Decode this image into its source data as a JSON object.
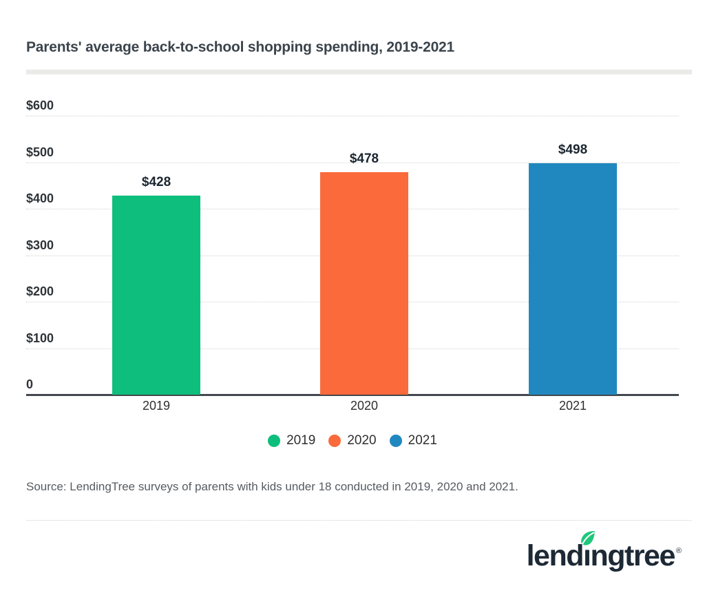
{
  "header": {
    "title": "Parents' average back-to-school shopping spending, 2019-2021"
  },
  "chart_data": {
    "type": "bar",
    "title": "Parents' average back-to-school shopping spending, 2019-2021",
    "categories": [
      "2019",
      "2020",
      "2021"
    ],
    "values": [
      428,
      478,
      498
    ],
    "value_labels": [
      "$428",
      "$478",
      "$498"
    ],
    "bar_colors": [
      "#0DBE7C",
      "#FB6A3B",
      "#2188BF"
    ],
    "ylim": [
      0,
      600
    ],
    "yticks": [
      0,
      100,
      200,
      300,
      400,
      500,
      600
    ],
    "ytick_labels": [
      "0",
      "$100",
      "$200",
      "$300",
      "$400",
      "$500",
      "$600"
    ],
    "xlabel": "",
    "ylabel": "",
    "grid": "horizontal dotted gridlines, dark baseline at 0",
    "legend": {
      "position": "bottom-center",
      "items": [
        {
          "label": "2019",
          "color": "#0DBE7C"
        },
        {
          "label": "2020",
          "color": "#FB6A3B"
        },
        {
          "label": "2021",
          "color": "#2188BF"
        }
      ]
    }
  },
  "source": {
    "text": "Source: LendingTree surveys of parents with kids under 18 conducted in 2019, 2020 and 2021."
  },
  "footer": {
    "logo": {
      "prefix": "lend",
      "dotless_i": "ı",
      "suffix": "ngtree",
      "registered": "®",
      "text_color": "#1d2935",
      "leaf_color": "#1FC77A"
    }
  }
}
